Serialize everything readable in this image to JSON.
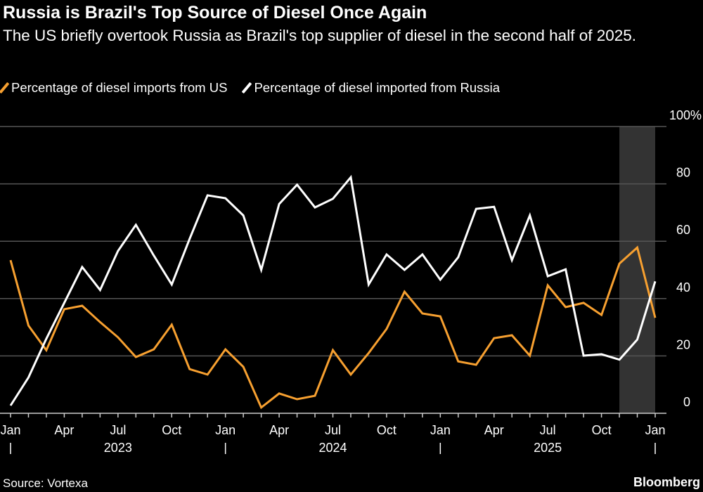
{
  "title": "Russia is Brazil's Top Source of Diesel Once Again",
  "subtitle": "The US briefly overtook Russia as Brazil's top supplier of diesel in the second half of 2025.",
  "source": "Source: Vortexa",
  "brand": "Bloomberg",
  "colors": {
    "us": "#f7a030",
    "russia": "#ffffff",
    "highlight": "#333333",
    "grid": "#555555"
  },
  "chart_data": {
    "type": "line",
    "x_start": "2023-01",
    "x_end": "2026-01",
    "x": [
      "2023-01",
      "2023-02",
      "2023-03",
      "2023-04",
      "2023-05",
      "2023-06",
      "2023-07",
      "2023-08",
      "2023-09",
      "2023-10",
      "2023-11",
      "2023-12",
      "2024-01",
      "2024-02",
      "2024-03",
      "2024-04",
      "2024-05",
      "2024-06",
      "2024-07",
      "2024-08",
      "2024-09",
      "2024-10",
      "2024-11",
      "2024-12",
      "2025-01",
      "2025-02",
      "2025-03",
      "2025-04",
      "2025-05",
      "2025-06",
      "2025-07",
      "2025-08",
      "2025-09",
      "2025-10",
      "2025-11",
      "2025-12",
      "2026-01"
    ],
    "series": [
      {
        "name": "Percentage of diesel imports from US",
        "color": "#f7a030",
        "values": [
          53.4,
          30.6,
          22,
          36.3,
          37.5,
          31.8,
          26.5,
          19.6,
          22.3,
          30.9,
          15.4,
          13.5,
          22.3,
          16.2,
          2,
          6.9,
          4.9,
          6.1,
          22,
          13.5,
          21,
          29.4,
          42.4,
          34.8,
          33.8,
          18.1,
          16.9,
          26.2,
          27.2,
          20.1,
          44.6,
          37,
          38.5,
          34.3,
          52.2,
          57.8,
          33.3
        ]
      },
      {
        "name": "Percentage of diesel imported from Russia",
        "color": "#ffffff",
        "values": [
          2.7,
          12.5,
          26,
          38.5,
          51,
          43,
          56.6,
          65.7,
          55,
          44.9,
          60.8,
          76,
          75,
          69,
          50,
          73,
          79.7,
          71.8,
          74.8,
          82.3,
          44.9,
          55.4,
          50,
          55.4,
          46.6,
          54.4,
          71.3,
          72,
          53.4,
          69,
          47.8,
          50.2,
          20.1,
          20.6,
          18.7,
          25.7,
          46
        ]
      }
    ],
    "ylim": [
      0,
      100
    ],
    "y_ticks": [
      "0",
      "20",
      "40",
      "60",
      "80",
      "100%"
    ],
    "y_tick_values": [
      0,
      20,
      40,
      60,
      80,
      100
    ],
    "x_tick_labels": [
      {
        "label": "Jan",
        "index": 0
      },
      {
        "label": "Apr",
        "index": 3
      },
      {
        "label": "Jul",
        "index": 6
      },
      {
        "label": "Oct",
        "index": 9
      },
      {
        "label": "Jan",
        "index": 12
      },
      {
        "label": "Apr",
        "index": 15
      },
      {
        "label": "Jul",
        "index": 18
      },
      {
        "label": "Oct",
        "index": 21
      },
      {
        "label": "Jan",
        "index": 24
      },
      {
        "label": "Apr",
        "index": 27
      },
      {
        "label": "Jul",
        "index": 30
      },
      {
        "label": "Oct",
        "index": 33
      },
      {
        "label": "Jan",
        "index": 36
      }
    ],
    "year_labels": [
      {
        "label": "2023",
        "index": 6
      },
      {
        "label": "2024",
        "index": 18
      },
      {
        "label": "2025",
        "index": 30
      }
    ],
    "highlight_range": [
      "2025-11",
      "2026-01"
    ],
    "grid": true,
    "legend_position": "top-left",
    "y_axis_side": "right"
  }
}
